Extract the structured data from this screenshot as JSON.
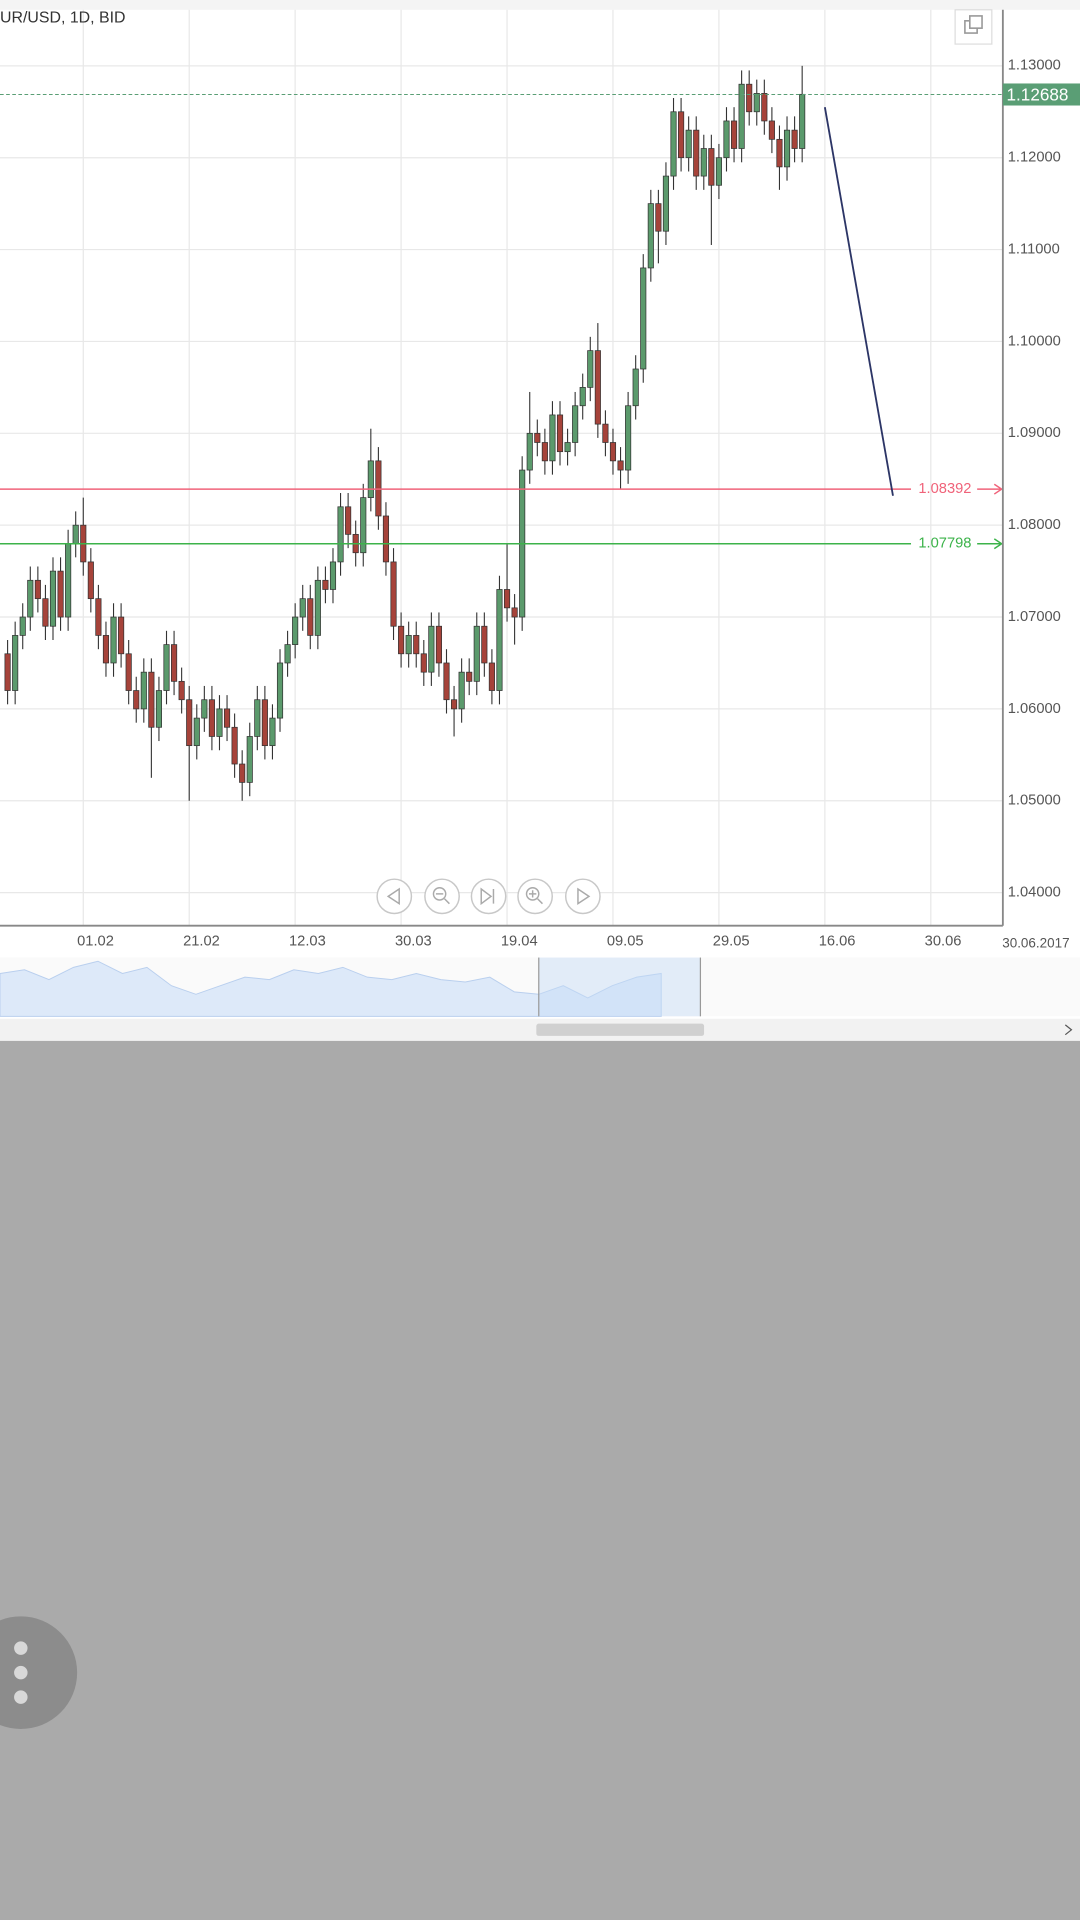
{
  "chart_data": {
    "type": "candlestick",
    "title": "UR/USD, 1D, BID",
    "date_label": "30.06.2017",
    "categories": [
      null,
      null,
      null,
      null,
      null,
      null,
      null,
      null,
      null,
      null,
      "01.02",
      null,
      null,
      null,
      null,
      null,
      null,
      null,
      null,
      null,
      null,
      null,
      null,
      null,
      "21.02",
      null,
      null,
      null,
      null,
      null,
      null,
      null,
      null,
      null,
      null,
      null,
      null,
      null,
      "12.03",
      null,
      null,
      null,
      null,
      null,
      null,
      null,
      null,
      null,
      null,
      null,
      null,
      null,
      "30.03",
      null,
      null,
      null,
      null,
      null,
      null,
      null,
      null,
      null,
      null,
      null,
      null,
      null,
      "19.04",
      null,
      null,
      null,
      null,
      null,
      null,
      null,
      null,
      null,
      null,
      null,
      null,
      null,
      "09.05",
      null,
      null,
      null,
      null,
      null,
      null,
      null,
      null,
      null,
      null,
      null,
      null,
      null,
      "29.05",
      null,
      null,
      null,
      null,
      null,
      null,
      null,
      null,
      null,
      null,
      null,
      null,
      null,
      "16.06",
      null,
      null,
      null,
      null,
      null,
      null,
      null,
      null,
      null,
      null,
      null,
      null,
      null,
      "30.06",
      null,
      null,
      null,
      null,
      null,
      null,
      null
    ],
    "open": [
      1.066,
      1.062,
      1.068,
      1.07,
      1.074,
      1.072,
      1.069,
      1.075,
      1.07,
      1.078,
      1.08,
      1.076,
      1.072,
      1.068,
      1.065,
      1.07,
      1.066,
      1.062,
      1.06,
      1.064,
      1.058,
      1.062,
      1.067,
      1.063,
      1.061,
      1.056,
      1.059,
      1.061,
      1.057,
      1.06,
      1.058,
      1.054,
      1.052,
      1.057,
      1.061,
      1.056,
      1.059,
      1.065,
      1.067,
      1.07,
      1.072,
      1.068,
      1.074,
      1.073,
      1.076,
      1.082,
      1.079,
      1.077,
      1.083,
      1.087,
      1.081,
      1.076,
      1.069,
      1.066,
      1.068,
      1.066,
      1.064,
      1.069,
      1.065,
      1.061,
      1.06,
      1.064,
      1.063,
      1.069,
      1.065,
      1.062,
      1.073,
      1.071,
      1.07,
      1.086,
      1.09,
      1.089,
      1.087,
      1.092,
      1.088,
      1.089,
      1.093,
      1.095,
      1.099,
      1.091,
      1.089,
      1.087,
      1.086,
      1.093,
      1.097,
      1.108,
      1.115,
      1.112,
      1.118,
      1.125,
      1.12,
      1.123,
      1.118,
      1.121,
      1.117,
      1.12,
      1.124,
      1.121,
      1.128,
      1.125,
      1.127,
      1.124,
      1.122,
      1.119,
      1.123,
      1.121,
      null,
      null,
      null,
      null,
      null,
      null,
      null,
      null,
      null,
      null,
      null,
      null,
      null,
      null,
      null,
      null,
      null,
      null,
      null,
      null,
      null,
      null,
      null,
      null
    ],
    "high": [
      1.0675,
      1.0695,
      1.0715,
      1.0755,
      1.0755,
      1.0735,
      1.0765,
      1.0765,
      1.0795,
      1.0815,
      1.083,
      1.0775,
      1.0735,
      1.0695,
      1.0715,
      1.0715,
      1.0675,
      1.0635,
      1.0655,
      1.0655,
      1.0635,
      1.0685,
      1.0685,
      1.0645,
      1.0625,
      1.0605,
      1.0625,
      1.0625,
      1.0615,
      1.0615,
      1.0595,
      1.0555,
      1.0585,
      1.0625,
      1.0625,
      1.0605,
      1.0665,
      1.0685,
      1.0715,
      1.0735,
      1.0735,
      1.0755,
      1.0755,
      1.0775,
      1.0835,
      1.0835,
      1.0805,
      1.0845,
      1.0905,
      1.0885,
      1.0825,
      1.0775,
      1.0705,
      1.0695,
      1.0695,
      1.0675,
      1.0705,
      1.0705,
      1.0665,
      1.0625,
      1.0655,
      1.0655,
      1.0705,
      1.0705,
      1.0665,
      1.0745,
      1.078,
      1.0725,
      1.0875,
      1.0945,
      1.0915,
      1.0905,
      1.0935,
      1.0935,
      1.0905,
      1.0945,
      1.0965,
      1.1005,
      1.102,
      1.0925,
      1.0905,
      1.0885,
      1.0945,
      1.0985,
      1.1095,
      1.1165,
      1.1165,
      1.1195,
      1.1265,
      1.1265,
      1.1245,
      1.1245,
      1.1225,
      1.1225,
      1.1215,
      1.1255,
      1.1255,
      1.1295,
      1.1295,
      1.1285,
      1.1285,
      1.1255,
      1.1235,
      1.1245,
      1.1245,
      1.13,
      null,
      null,
      null,
      null,
      null,
      null,
      null,
      null,
      null,
      null,
      null,
      null,
      null,
      null,
      null,
      null,
      null,
      null,
      null,
      null,
      null,
      null,
      null,
      null
    ],
    "low": [
      1.0605,
      1.0605,
      1.0665,
      1.0685,
      1.0705,
      1.0675,
      1.0675,
      1.0685,
      1.0685,
      1.0765,
      1.0745,
      1.0705,
      1.0665,
      1.0635,
      1.0635,
      1.0645,
      1.0605,
      1.0585,
      1.0585,
      1.0525,
      1.0565,
      1.0605,
      1.0615,
      1.0595,
      1.05,
      1.0545,
      1.0575,
      1.0555,
      1.0555,
      1.0565,
      1.0525,
      1.05,
      1.0505,
      1.0555,
      1.0545,
      1.0545,
      1.0575,
      1.0635,
      1.0655,
      1.0685,
      1.0665,
      1.0665,
      1.0715,
      1.0715,
      1.0745,
      1.0775,
      1.0755,
      1.0755,
      1.0815,
      1.0795,
      1.0745,
      1.0675,
      1.0645,
      1.0645,
      1.0645,
      1.0625,
      1.0625,
      1.0635,
      1.0595,
      1.057,
      1.0585,
      1.0615,
      1.0615,
      1.0635,
      1.0605,
      1.0605,
      1.0695,
      1.067,
      1.0685,
      1.0845,
      1.0875,
      1.0855,
      1.0855,
      1.0865,
      1.0865,
      1.0875,
      1.0915,
      1.0935,
      1.0895,
      1.0875,
      1.0855,
      1.084,
      1.0845,
      1.0915,
      1.0955,
      1.1065,
      1.1085,
      1.1105,
      1.1165,
      1.1185,
      1.1185,
      1.1165,
      1.1165,
      1.1105,
      1.1155,
      1.1185,
      1.1195,
      1.1195,
      1.1235,
      1.1235,
      1.1225,
      1.1205,
      1.1165,
      1.1175,
      1.1195,
      1.1195,
      null,
      null,
      null,
      null,
      null,
      null,
      null,
      null,
      null,
      null,
      null,
      null,
      null,
      null,
      null,
      null,
      null,
      null,
      null,
      null,
      null,
      null,
      null,
      null
    ],
    "close": [
      1.062,
      1.068,
      1.07,
      1.074,
      1.072,
      1.069,
      1.075,
      1.07,
      1.078,
      1.08,
      1.076,
      1.072,
      1.068,
      1.065,
      1.07,
      1.066,
      1.062,
      1.06,
      1.064,
      1.058,
      1.062,
      1.067,
      1.063,
      1.061,
      1.056,
      1.059,
      1.061,
      1.057,
      1.06,
      1.058,
      1.054,
      1.052,
      1.057,
      1.061,
      1.056,
      1.059,
      1.065,
      1.067,
      1.07,
      1.072,
      1.068,
      1.074,
      1.073,
      1.076,
      1.082,
      1.079,
      1.077,
      1.083,
      1.087,
      1.081,
      1.076,
      1.069,
      1.066,
      1.068,
      1.066,
      1.064,
      1.069,
      1.065,
      1.061,
      1.06,
      1.064,
      1.063,
      1.069,
      1.065,
      1.062,
      1.073,
      1.071,
      1.07,
      1.086,
      1.09,
      1.089,
      1.087,
      1.092,
      1.088,
      1.089,
      1.093,
      1.095,
      1.099,
      1.091,
      1.089,
      1.087,
      1.086,
      1.093,
      1.097,
      1.108,
      1.115,
      1.112,
      1.118,
      1.125,
      1.12,
      1.123,
      1.118,
      1.121,
      1.117,
      1.12,
      1.124,
      1.121,
      1.128,
      1.125,
      1.127,
      1.124,
      1.122,
      1.119,
      1.123,
      1.121,
      1.1269,
      null,
      null,
      null,
      null,
      null,
      null,
      null,
      null,
      null,
      null,
      null,
      null,
      null,
      null,
      null,
      null,
      null,
      null,
      null,
      null,
      null,
      null,
      null,
      null
    ],
    "up_color": "#5b9a6c",
    "down_color": "#a6433a",
    "ylim": [
      1.0364,
      1.1361
    ],
    "yticks": [
      {
        "value": 1.04,
        "label": "1.04000"
      },
      {
        "value": 1.05,
        "label": "1.05000"
      },
      {
        "value": 1.06,
        "label": "1.06000"
      },
      {
        "value": 1.07,
        "label": "1.07000"
      },
      {
        "value": 1.08,
        "label": "1.08000"
      },
      {
        "value": 1.09,
        "label": "1.09000"
      },
      {
        "value": 1.1,
        "label": "1.10000"
      },
      {
        "value": 1.11,
        "label": "1.11000"
      },
      {
        "value": 1.12,
        "label": "1.12000"
      },
      {
        "value": 1.13,
        "label": "1.13000"
      }
    ],
    "grid": true,
    "last_price": {
      "value": 1.12688,
      "color": "#5a9e75"
    },
    "levels": [
      {
        "value": 1.08392,
        "color": "#f0637a"
      },
      {
        "value": 1.07798,
        "color": "#3cb34a"
      }
    ],
    "trend_line": {
      "from": [
        108,
        1.1255
      ],
      "to": [
        117,
        1.0832
      ],
      "color": "#2c3566"
    }
  }
}
